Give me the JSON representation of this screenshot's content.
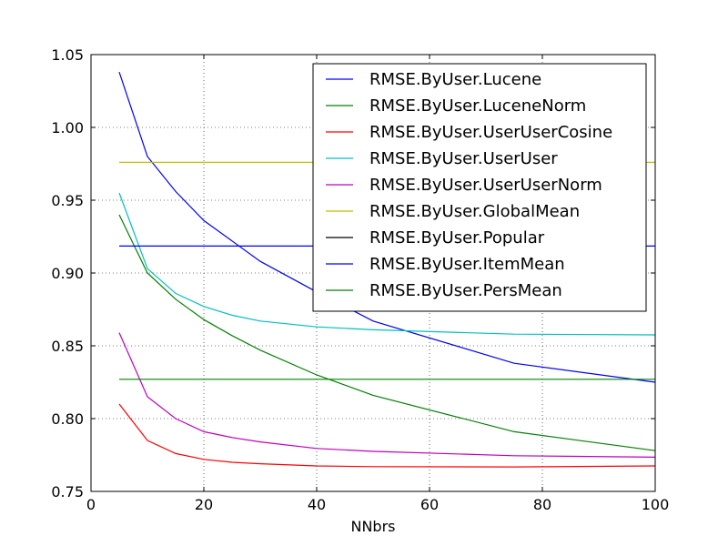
{
  "chart_data": {
    "type": "line",
    "title": "",
    "xlabel": "NNbrs",
    "ylabel": "",
    "xlim": [
      0,
      100
    ],
    "ylim": [
      0.75,
      1.05
    ],
    "xticks": [
      0,
      20,
      40,
      60,
      80,
      100
    ],
    "yticks": [
      0.75,
      0.8,
      0.85,
      0.9,
      0.95,
      1.0,
      1.05
    ],
    "xtick_labels": [
      "0",
      "20",
      "40",
      "60",
      "80",
      "100"
    ],
    "ytick_labels": [
      "0.75",
      "0.80",
      "0.85",
      "0.90",
      "0.95",
      "1.00",
      "1.05"
    ],
    "grid": true,
    "legend_position": "top-right",
    "series": [
      {
        "name": "RMSE.ByUser.Lucene",
        "color": "#0000ff",
        "x": [
          5,
          10,
          15,
          20,
          25,
          30,
          40,
          50,
          75,
          100
        ],
        "y": [
          1.038,
          0.98,
          0.956,
          0.936,
          0.922,
          0.908,
          0.887,
          0.867,
          0.838,
          0.825
        ]
      },
      {
        "name": "RMSE.ByUser.LuceneNorm",
        "color": "#008000",
        "x": [
          5,
          10,
          15,
          20,
          25,
          30,
          40,
          50,
          75,
          100
        ],
        "y": [
          0.94,
          0.9,
          0.882,
          0.868,
          0.857,
          0.847,
          0.83,
          0.816,
          0.791,
          0.778
        ]
      },
      {
        "name": "RMSE.ByUser.UserUserCosine",
        "color": "#ff0000",
        "x": [
          5,
          10,
          15,
          20,
          25,
          30,
          40,
          50,
          75,
          100
        ],
        "y": [
          0.81,
          0.785,
          0.776,
          0.772,
          0.77,
          0.769,
          0.7675,
          0.767,
          0.7668,
          0.7675
        ]
      },
      {
        "name": "RMSE.ByUser.UserUser",
        "color": "#00bfbf",
        "x": [
          5,
          10,
          15,
          20,
          25,
          30,
          40,
          50,
          75,
          100
        ],
        "y": [
          0.955,
          0.903,
          0.886,
          0.877,
          0.871,
          0.867,
          0.863,
          0.861,
          0.858,
          0.8575
        ]
      },
      {
        "name": "RMSE.ByUser.UserUserNorm",
        "color": "#bf00bf",
        "x": [
          5,
          10,
          15,
          20,
          25,
          30,
          40,
          50,
          75,
          100
        ],
        "y": [
          0.859,
          0.815,
          0.8,
          0.791,
          0.787,
          0.784,
          0.7795,
          0.7775,
          0.7745,
          0.7735
        ]
      },
      {
        "name": "RMSE.ByUser.GlobalMean",
        "color": "#bfbf00",
        "x": [
          5,
          100
        ],
        "y": [
          0.976,
          0.976
        ]
      },
      {
        "name": "RMSE.ByUser.Popular",
        "color": "#000000",
        "x": [],
        "y": []
      },
      {
        "name": "RMSE.ByUser.ItemMean",
        "color": "#0000ff",
        "x": [
          5,
          100
        ],
        "y": [
          0.9185,
          0.9185
        ]
      },
      {
        "name": "RMSE.ByUser.PersMean",
        "color": "#008000",
        "x": [
          5,
          100
        ],
        "y": [
          0.827,
          0.827
        ]
      }
    ]
  }
}
